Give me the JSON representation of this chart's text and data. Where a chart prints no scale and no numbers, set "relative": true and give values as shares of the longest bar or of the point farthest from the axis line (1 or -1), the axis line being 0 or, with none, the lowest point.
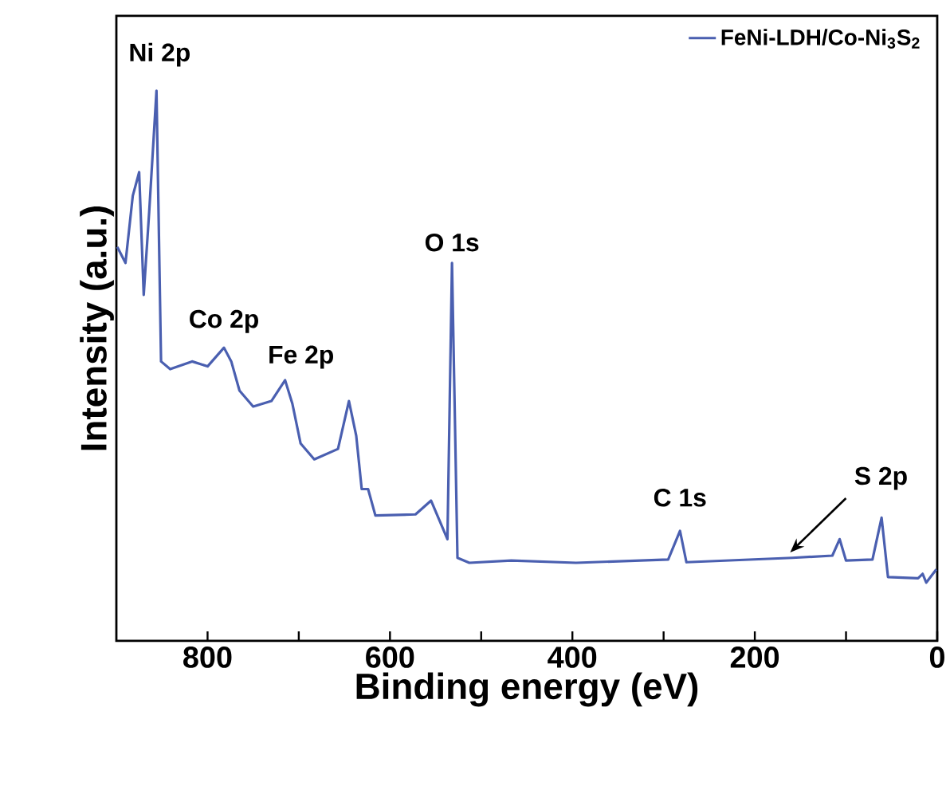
{
  "chart_data": {
    "type": "line",
    "relative": true,
    "xlabel": "Binding energy (eV)",
    "ylabel": "Intensity (a.u.)",
    "xlim": [
      900,
      0
    ],
    "xticks": [
      800,
      {
        "value": 700,
        "label": null
      },
      600,
      {
        "value": 500,
        "label": null
      },
      400,
      {
        "value": 300,
        "label": null
      },
      200,
      {
        "value": 100,
        "label": null
      },
      0
    ],
    "legend": "top right",
    "grid": false,
    "marker": "none",
    "line_style": "solid",
    "series": [
      {
        "name": "FeNi-LDH/Co-Ni$_{3}$S$_{2}$",
        "color": "#4a5fb0",
        "x": [
          899,
          890,
          882,
          875,
          870,
          864,
          856,
          851,
          841,
          817,
          800,
          782,
          774,
          765,
          750,
          730,
          715,
          707,
          698,
          683,
          657,
          645,
          637,
          631,
          624,
          616,
          572,
          555,
          537,
          532,
          526,
          513,
          467,
          396,
          295,
          282,
          275,
          159,
          115,
          107,
          100,
          71,
          61,
          54,
          21,
          16,
          12,
          1
        ],
        "values": [
          0.716,
          0.687,
          0.809,
          0.852,
          0.629,
          0.78,
          1.0,
          0.508,
          0.494,
          0.508,
          0.499,
          0.533,
          0.508,
          0.455,
          0.426,
          0.436,
          0.474,
          0.431,
          0.359,
          0.33,
          0.349,
          0.436,
          0.373,
          0.276,
          0.276,
          0.228,
          0.23,
          0.255,
          0.185,
          0.687,
          0.151,
          0.142,
          0.146,
          0.142,
          0.148,
          0.2,
          0.143,
          0.151,
          0.155,
          0.185,
          0.146,
          0.148,
          0.224,
          0.116,
          0.114,
          0.122,
          0.106,
          0.13
        ]
      }
    ],
    "annotations": [
      {
        "text": "Ni 2p",
        "x": 856,
        "y": 1.0
      },
      {
        "text": "Co 2p",
        "x": 782,
        "y": 0.533
      },
      {
        "text": "Fe 2p",
        "x": 715,
        "y": 0.474
      },
      {
        "text": "O 1s",
        "x": 532,
        "y": 0.687
      },
      {
        "text": "C 1s",
        "x": 282,
        "y": 0.2
      },
      {
        "text": "S 2p",
        "x": 163,
        "y": 0.155
      }
    ]
  }
}
